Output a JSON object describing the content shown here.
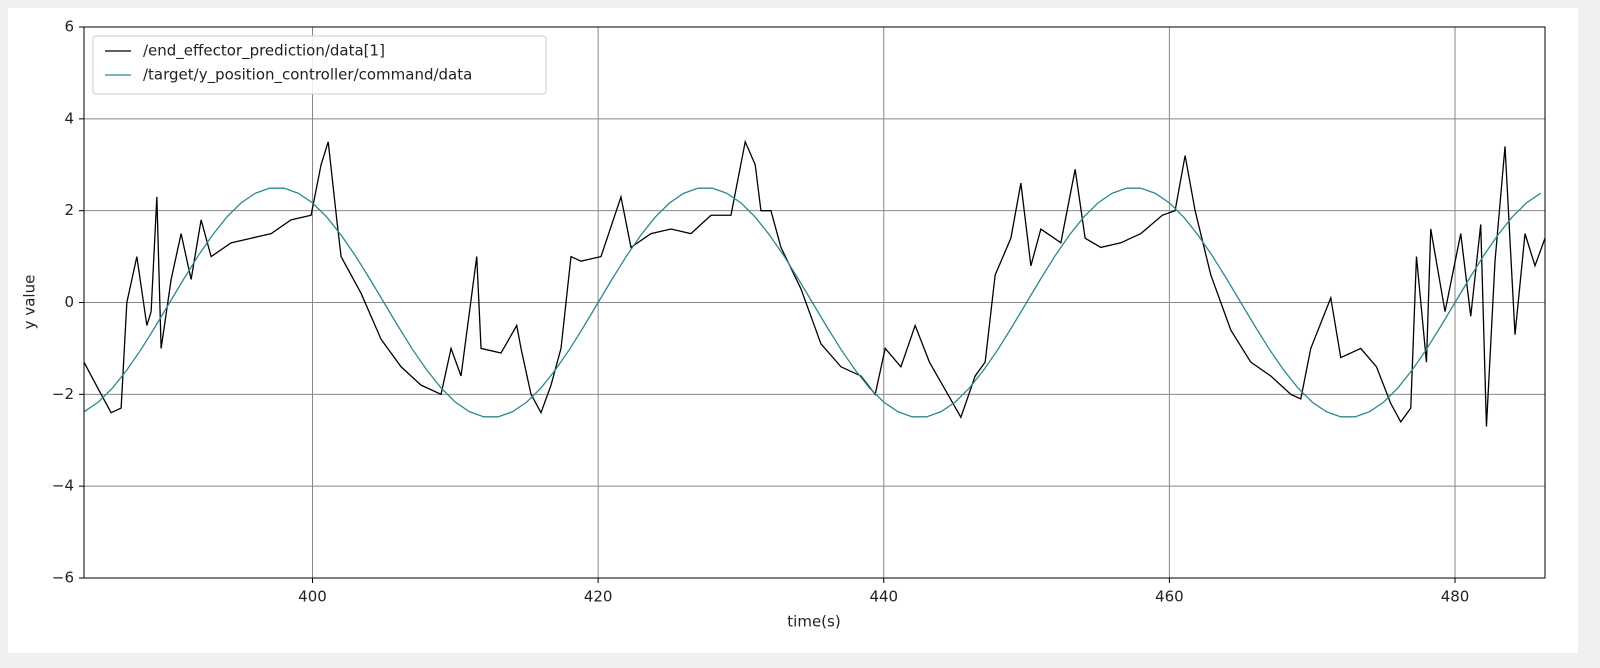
{
  "chart_data": {
    "type": "line",
    "xlabel": "time(s)",
    "ylabel": "y value",
    "xlim": [
      384,
      486.3
    ],
    "ylim": [
      -6,
      6
    ],
    "xticks": [
      400,
      420,
      440,
      460,
      480
    ],
    "yticks": [
      {
        "value": -6,
        "label": "−6"
      },
      {
        "value": -4,
        "label": "−4"
      },
      {
        "value": -2,
        "label": "−2"
      },
      0,
      2,
      4,
      6
    ],
    "grid": true,
    "legend": "upper left",
    "series": [
      {
        "name": "/end_effector_prediction/data[1]",
        "color": "#000000",
        "x": [
          384,
          385.2,
          385.9,
          386.6,
          387,
          387.7,
          388.4,
          388.7,
          389.1,
          389.4,
          390.1,
          390.8,
          391.5,
          392.2,
          392.9,
          394.3,
          395.7,
          397.1,
          398.5,
          399.9,
          400.6,
          401.1,
          401.7,
          402,
          403.4,
          404.8,
          406.2,
          407.6,
          409,
          409.7,
          410.4,
          411.5,
          411.8,
          413.2,
          414.3,
          414.6,
          415.3,
          416,
          416.7,
          417.4,
          418.1,
          418.8,
          420.2,
          421.6,
          422.3,
          423.7,
          425.1,
          426.5,
          427.9,
          429.3,
          430.3,
          431,
          431.4,
          432.1,
          432.8,
          434.2,
          435.6,
          437,
          438.4,
          439.4,
          440.1,
          441.2,
          442.2,
          443.2,
          444.3,
          445.4,
          446.4,
          447.1,
          447.8,
          448.9,
          449.6,
          450.3,
          451,
          452.4,
          453.4,
          454.1,
          455.2,
          456.6,
          458,
          459.5,
          460.4,
          461.1,
          461.8,
          462.9,
          464.3,
          465.7,
          467.1,
          468.5,
          469.2,
          469.9,
          471.3,
          472,
          473.4,
          474.5,
          475.5,
          476.2,
          476.9,
          477.3,
          478,
          478.3,
          479.3,
          480.4,
          481.1,
          481.8,
          482.2,
          482.8,
          483.5,
          484.2,
          484.9,
          485.6,
          486.3
        ],
        "values": [
          -1.3,
          -2.0,
          -2.4,
          -2.3,
          0,
          1.0,
          -0.5,
          -0.2,
          2.3,
          -1.0,
          0.5,
          1.5,
          0.5,
          1.8,
          1.0,
          1.3,
          1.4,
          1.5,
          1.8,
          1.9,
          3.0,
          3.5,
          1.8,
          1.0,
          0.2,
          -0.8,
          -1.4,
          -1.8,
          -2.0,
          -1.0,
          -1.6,
          1.0,
          -1.0,
          -1.1,
          -0.5,
          -1.0,
          -2.0,
          -2.4,
          -1.8,
          -1.0,
          1.0,
          0.9,
          1.0,
          2.3,
          1.2,
          1.5,
          1.6,
          1.5,
          1.9,
          1.9,
          3.5,
          3.0,
          2.0,
          2.0,
          1.2,
          0.3,
          -0.9,
          -1.4,
          -1.6,
          -2.0,
          -1.0,
          -1.4,
          -0.5,
          -1.3,
          -1.9,
          -2.5,
          -1.6,
          -1.3,
          0.6,
          1.4,
          2.6,
          0.8,
          1.6,
          1.3,
          2.9,
          1.4,
          1.2,
          1.3,
          1.5,
          1.9,
          2.0,
          3.2,
          2.0,
          0.6,
          -0.6,
          -1.3,
          -1.6,
          -2.0,
          -2.1,
          -1.0,
          0.1,
          -1.2,
          -1.0,
          -1.4,
          -2.2,
          -2.6,
          -2.3,
          1.0,
          -1.3,
          1.6,
          -0.2,
          1.5,
          -0.3,
          1.7,
          -2.7,
          0.9,
          3.4,
          -0.7,
          1.5,
          0.8,
          1.4
        ]
      },
      {
        "name": "/target/y_position_controller/command/data",
        "color": "#2a8a8f",
        "x": [
          384,
          385,
          386,
          387,
          388,
          389,
          390,
          391,
          392,
          393,
          394,
          395,
          396,
          397,
          398,
          399,
          400,
          401,
          402,
          403,
          404,
          405,
          406,
          407,
          408,
          409,
          410,
          411,
          412,
          413,
          414,
          415,
          416,
          417,
          418,
          419,
          420,
          421,
          422,
          423,
          424,
          425,
          426,
          427,
          428,
          429,
          430,
          431,
          432,
          433,
          434,
          435,
          436,
          437,
          438,
          439,
          440,
          441,
          442,
          443,
          444,
          445,
          446,
          447,
          448,
          449,
          450,
          451,
          452,
          453,
          454,
          455,
          456,
          457,
          458,
          459,
          460,
          461,
          462,
          463,
          464,
          465,
          466,
          467,
          468,
          469,
          470,
          471,
          472,
          473,
          474,
          475,
          476,
          477,
          478,
          479,
          480,
          481,
          482,
          483,
          484,
          485,
          486
        ],
        "values": [
          -2.38,
          -2.17,
          -1.86,
          -1.47,
          -1.02,
          -0.52,
          0,
          0.52,
          1.02,
          1.47,
          1.86,
          2.17,
          2.38,
          2.49,
          2.49,
          2.38,
          2.17,
          1.86,
          1.47,
          1.02,
          0.52,
          0,
          -0.52,
          -1.02,
          -1.47,
          -1.86,
          -2.17,
          -2.38,
          -2.49,
          -2.49,
          -2.38,
          -2.17,
          -1.86,
          -1.47,
          -1.02,
          -0.52,
          0,
          0.52,
          1.02,
          1.47,
          1.86,
          2.17,
          2.38,
          2.49,
          2.49,
          2.38,
          2.17,
          1.86,
          1.47,
          1.02,
          0.52,
          0,
          -0.52,
          -1.02,
          -1.47,
          -1.86,
          -2.17,
          -2.38,
          -2.49,
          -2.49,
          -2.38,
          -2.17,
          -1.86,
          -1.47,
          -1.02,
          -0.52,
          0,
          0.52,
          1.02,
          1.47,
          1.86,
          2.17,
          2.38,
          2.49,
          2.49,
          2.38,
          2.17,
          1.86,
          1.47,
          1.02,
          0.52,
          0,
          -0.52,
          -1.02,
          -1.47,
          -1.86,
          -2.17,
          -2.38,
          -2.49,
          -2.49,
          -2.38,
          -2.17,
          -1.86,
          -1.47,
          -1.02,
          -0.52,
          0,
          0.52,
          1.02,
          1.47,
          1.86,
          2.17,
          2.38
        ]
      }
    ]
  }
}
